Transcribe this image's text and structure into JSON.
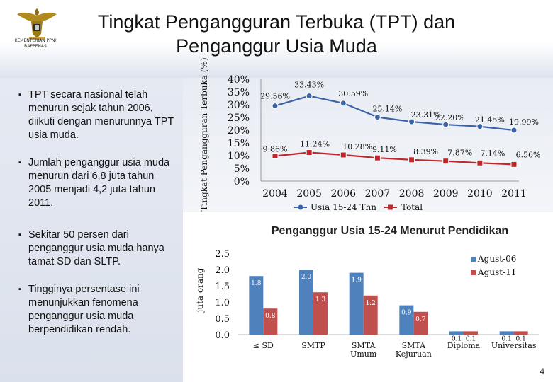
{
  "header": {
    "title_line1": "Tingkat Pengangguran Terbuka (TPT) dan",
    "title_line2": "Penganggur Usia Muda",
    "ministry": "KEMENTERIAN PPN/ BAPPENAS"
  },
  "bullets": [
    "TPT secara nasional telah menurun sejak tahun 2006, diikuti dengan menurunnya TPT usia muda.",
    "Jumlah penganggur usia muda menurun dari 6,8 juta tahun 2005 menjadi 4,2 juta tahun 2011.",
    "Sekitar 50 persen dari penganggur usia muda hanya tamat SD dan SLTP.",
    "Tingginya persentase ini menunjukkan fenomena penganggur usia muda berpendidikan rendah."
  ],
  "page_number": "4",
  "colors": {
    "series_blue": "#3b63a8",
    "series_red": "#c0272d",
    "bar_blue": "#4f81bd",
    "bar_red": "#c0504d"
  },
  "chart_data": [
    {
      "type": "line",
      "ylabel": "Tingkat Pengangguran Terbuka (%)",
      "x": [
        "2004",
        "2005",
        "2006",
        "2007",
        "2008",
        "2009",
        "2010",
        "2011"
      ],
      "ylim": [
        0,
        40
      ],
      "yticks": [
        "0%",
        "5%",
        "10%",
        "15%",
        "20%",
        "25%",
        "30%",
        "35%",
        "40%"
      ],
      "series": [
        {
          "name": "Usia 15-24 Thn",
          "values": [
            29.56,
            33.43,
            30.59,
            25.14,
            23.31,
            22.2,
            21.45,
            19.99
          ],
          "labels": [
            "29.56%",
            "33.43%",
            "30.59%",
            "25.14%",
            "23.31%",
            "22.20%",
            "21.45%",
            "19.99%"
          ]
        },
        {
          "name": "Total",
          "values": [
            9.86,
            11.24,
            10.28,
            9.11,
            8.39,
            7.87,
            7.14,
            6.56
          ],
          "labels": [
            "9.86%",
            "11.24%",
            "10.28%",
            "9.11%",
            "8.39%",
            "7.87%",
            "7.14%",
            "6.56%"
          ]
        }
      ],
      "legend_position": "bottom"
    },
    {
      "type": "bar",
      "title": "Penganggur Usia 15-24 Menurut Pendidikan",
      "ylabel": "juta orang",
      "categories": [
        "≤ SD",
        "SMTP",
        "SMTA Umum",
        "SMTA Kejuruan",
        "Diploma",
        "Universitas"
      ],
      "ylim": [
        0,
        2.5
      ],
      "yticks": [
        "0.0",
        "0.5",
        "1.0",
        "1.5",
        "2.0",
        "2.5"
      ],
      "series": [
        {
          "name": "Agust-06",
          "values": [
            1.8,
            2.0,
            1.9,
            0.9,
            0.1,
            0.1
          ],
          "labels": [
            "1.8",
            "2.0",
            "1.9",
            "0.9",
            "0.1",
            "0.1"
          ]
        },
        {
          "name": "Agust-11",
          "values": [
            0.8,
            1.3,
            1.2,
            0.7,
            0.1,
            0.1
          ],
          "labels": [
            "0.8",
            "1.3",
            "1.2",
            "0.7",
            "0.1",
            "0.1"
          ]
        }
      ],
      "legend_position": "top-right"
    }
  ]
}
